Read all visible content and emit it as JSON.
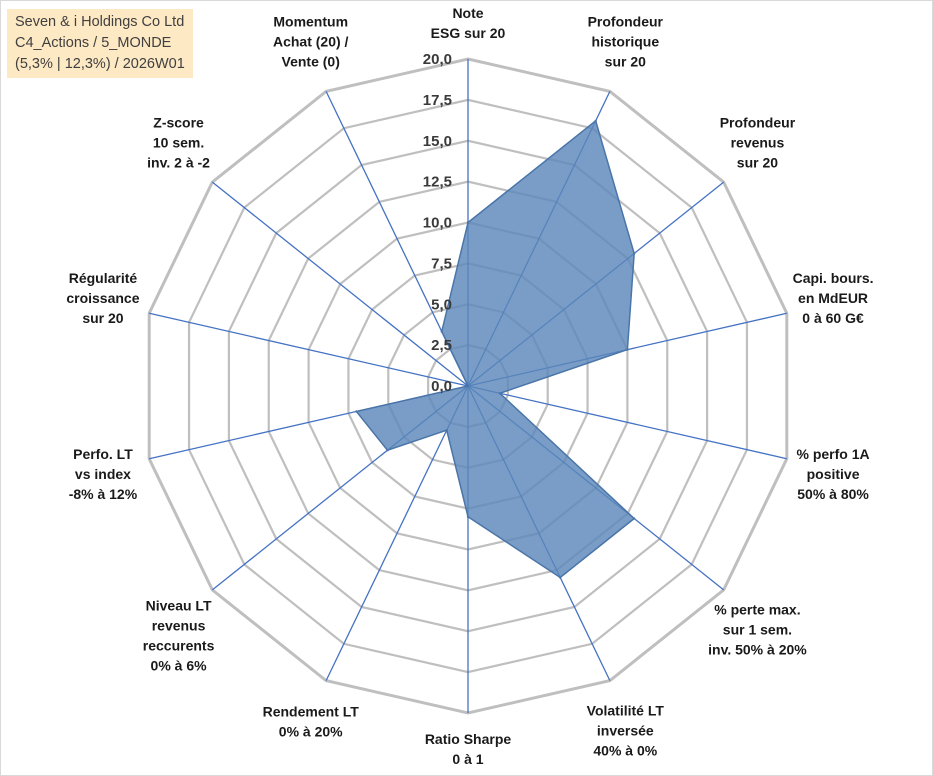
{
  "title_box": {
    "line1": "Seven & i Holdings Co Ltd",
    "line2": "C4_Actions / 5_MONDE",
    "line3": "(5,3% | 12,3%) / 2026W01"
  },
  "chart_data": {
    "type": "radar",
    "r_range": [
      0,
      20
    ],
    "r_ticks": [
      "0,0",
      "2,5",
      "5,0",
      "7,5",
      "10,0",
      "12,5",
      "15,0",
      "17,5",
      "20,0"
    ],
    "grid": true,
    "axes": [
      [
        "Note",
        "ESG sur 20"
      ],
      [
        "Profondeur",
        "historique",
        "sur 20"
      ],
      [
        "Profondeur",
        "revenus",
        "sur 20"
      ],
      [
        "Capi. bours.",
        "en MdEUR",
        "0 à 60 G€"
      ],
      [
        "% perfo 1A",
        "positive",
        "50% à 80%"
      ],
      [
        "% perte max.",
        "sur 1 sem.",
        "inv. 50% à 20%"
      ],
      [
        "Volatilité LT",
        "inversée",
        "40% à 0%"
      ],
      [
        "Ratio Sharpe",
        "0 à 1"
      ],
      [
        "Rendement LT",
        "0% à 20%"
      ],
      [
        "Niveau LT",
        "revenus",
        "reccurents",
        "0% à 6%"
      ],
      [
        "Perfo. LT",
        "vs index",
        "-8% à 12%"
      ],
      [
        "Régularité",
        "croissance",
        "sur 20"
      ],
      [
        "Z-score",
        "10 sem.",
        "inv. 2 à -2"
      ],
      [
        "Momentum",
        "Achat (20) /",
        "Vente (0)"
      ]
    ],
    "series": [
      {
        "values": [
          10.0,
          18.0,
          13.0,
          10.0,
          2.0,
          13.0,
          13.0,
          8.0,
          3.0,
          6.3,
          7.0,
          0.0,
          0.0,
          3.7
        ]
      }
    ],
    "colors": {
      "fill": "#5b87bb",
      "fill_opacity": 0.82,
      "stroke": "#4a75a8",
      "grid": "#bfbfbf",
      "spoke": "#4472c4"
    }
  }
}
